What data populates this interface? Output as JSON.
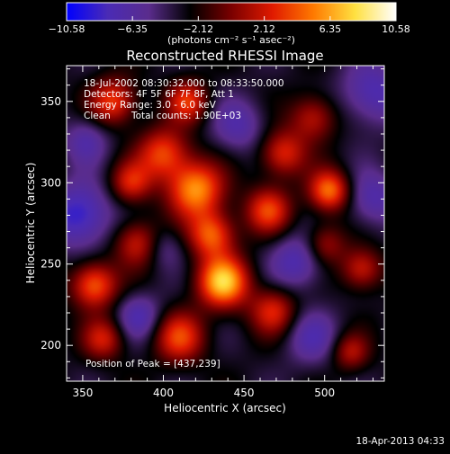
{
  "chart_data": {
    "type": "heatmap",
    "title": "Reconstructed RHESSI Image",
    "xlabel": "Heliocentric X (arcsec)",
    "ylabel": "Heliocentric Y (arcsec)",
    "xlim": [
      340,
      537
    ],
    "ylim": [
      178,
      372
    ],
    "x_ticks": [
      350,
      400,
      450,
      500
    ],
    "y_ticks": [
      200,
      250,
      300,
      350
    ],
    "colorbar": {
      "label": "(photons cm⁻² s⁻¹ asec⁻²)",
      "range": [
        -10.58,
        10.58
      ],
      "ticks": [
        "−10.58",
        "−6.35",
        "−2.12",
        "2.12",
        "6.35",
        "10.58"
      ],
      "tick_values": [
        -10.58,
        -6.35,
        -2.12,
        2.12,
        6.35,
        10.58
      ],
      "colors": [
        "#0000ff",
        "#4a2bb5",
        "#5a2c8c",
        "#000000",
        "#7a0000",
        "#e01a00",
        "#ff7a00",
        "#ffe040",
        "#ffffff"
      ]
    },
    "annotations": {
      "time_range": "18-Jul-2002 08:30:32.000 to 08:33:50.000",
      "detectors": "Detectors: 4F 5F 6F 7F 8F, Att 1",
      "energy_range": "Energy Range: 3.0 - 6.0 keV",
      "method": "Clean",
      "total_counts": "Total counts: 1.90E+03",
      "peak_position": "Position of Peak = [437,239]"
    },
    "peak": [
      437,
      239
    ],
    "sources": [
      {
        "x": 437,
        "y": 239,
        "amp": 10.5,
        "sigma": 11
      },
      {
        "x": 420,
        "y": 296,
        "amp": 9.0,
        "sigma": 12
      },
      {
        "x": 400,
        "y": 318,
        "amp": 6.8,
        "sigma": 11
      },
      {
        "x": 503,
        "y": 295,
        "amp": 8.2,
        "sigma": 9
      },
      {
        "x": 430,
        "y": 268,
        "amp": 7.5,
        "sigma": 10
      },
      {
        "x": 357,
        "y": 237,
        "amp": 7.8,
        "sigma": 10
      },
      {
        "x": 369,
        "y": 350,
        "amp": 6.5,
        "sigma": 10
      },
      {
        "x": 415,
        "y": 350,
        "amp": 6.0,
        "sigma": 9
      },
      {
        "x": 380,
        "y": 300,
        "amp": 5.5,
        "sigma": 9
      },
      {
        "x": 465,
        "y": 283,
        "amp": 6.5,
        "sigma": 10
      },
      {
        "x": 474,
        "y": 318,
        "amp": 6.0,
        "sigma": 10
      },
      {
        "x": 493,
        "y": 340,
        "amp": 5.0,
        "sigma": 10
      },
      {
        "x": 523,
        "y": 247,
        "amp": 5.5,
        "sigma": 9
      },
      {
        "x": 468,
        "y": 221,
        "amp": 5.8,
        "sigma": 10
      },
      {
        "x": 410,
        "y": 205,
        "amp": 6.5,
        "sigma": 11
      },
      {
        "x": 363,
        "y": 204,
        "amp": 5.2,
        "sigma": 9
      },
      {
        "x": 384,
        "y": 263,
        "amp": 5.5,
        "sigma": 10
      },
      {
        "x": 516,
        "y": 196,
        "amp": 4.5,
        "sigma": 8
      },
      {
        "x": 500,
        "y": 262,
        "amp": 4.5,
        "sigma": 9
      },
      {
        "x": 348,
        "y": 280,
        "amp": -6.0,
        "sigma": 14
      },
      {
        "x": 484,
        "y": 252,
        "amp": -4.5,
        "sigma": 12
      },
      {
        "x": 530,
        "y": 355,
        "amp": -4.5,
        "sigma": 14
      },
      {
        "x": 447,
        "y": 335,
        "amp": -3.5,
        "sigma": 12
      },
      {
        "x": 385,
        "y": 218,
        "amp": -4.0,
        "sigma": 10
      },
      {
        "x": 492,
        "y": 205,
        "amp": -3.5,
        "sigma": 12
      },
      {
        "x": 352,
        "y": 326,
        "amp": -3.5,
        "sigma": 10
      },
      {
        "x": 530,
        "y": 290,
        "amp": -4.0,
        "sigma": 12
      },
      {
        "x": 400,
        "y": 260,
        "amp": -2.5,
        "sigma": 9
      }
    ]
  },
  "footer": {
    "timestamp": "18-Apr-2013 04:33"
  }
}
